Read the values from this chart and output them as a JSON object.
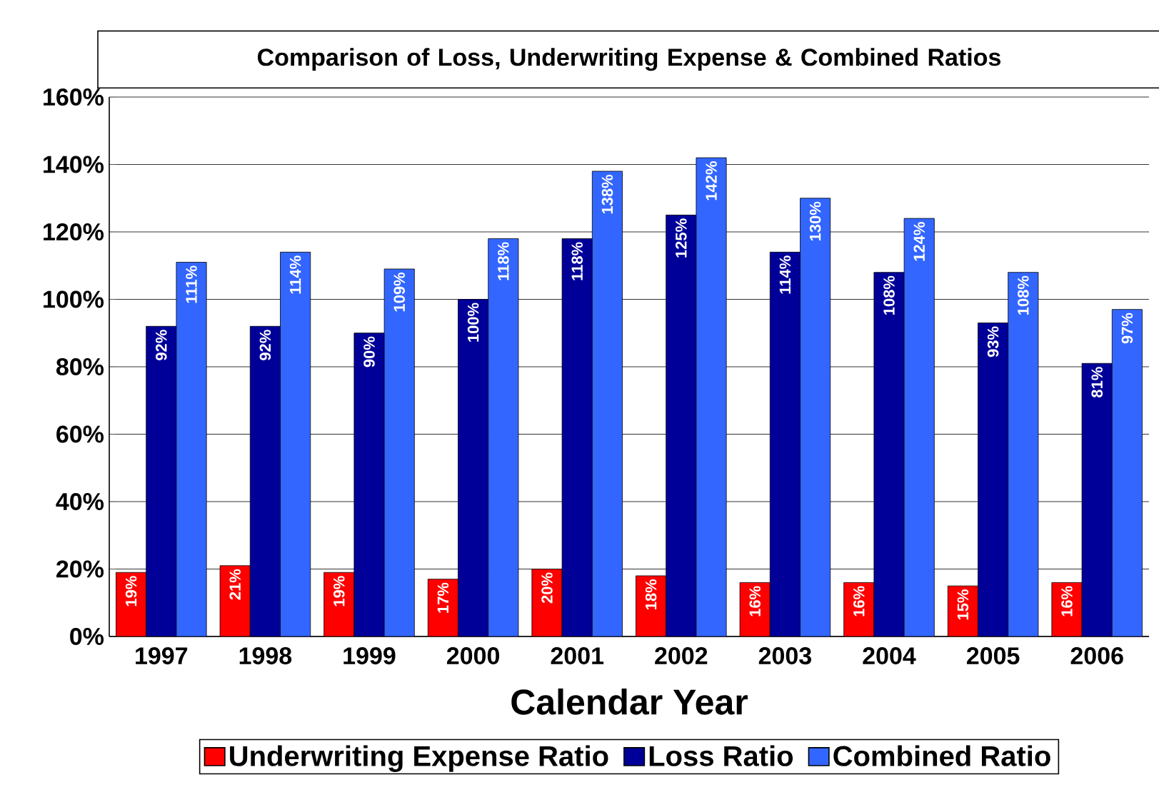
{
  "chart_data": {
    "type": "bar",
    "title": "Comparison of Loss, Underwriting Expense & Combined Ratios",
    "xlabel": "Calendar Year",
    "categories": [
      "1997",
      "1998",
      "1999",
      "2000",
      "2001",
      "2002",
      "2003",
      "2004",
      "2005",
      "2006"
    ],
    "series": [
      {
        "name": "Underwriting Expense Ratio",
        "color": "#ff0000",
        "values": [
          19,
          21,
          19,
          17,
          20,
          18,
          16,
          16,
          15,
          16
        ],
        "value_labels": [
          "19%",
          "21%",
          "19%",
          "17%",
          "20%",
          "18%",
          "16%",
          "16%",
          "15%",
          "16%"
        ]
      },
      {
        "name": "Loss Ratio",
        "color": "#000099",
        "values": [
          92,
          92,
          90,
          100,
          118,
          125,
          114,
          108,
          93,
          81
        ],
        "value_labels": [
          "92%",
          "92%",
          "90%",
          "100%",
          "118%",
          "125%",
          "114%",
          "108%",
          "93%",
          "81%"
        ]
      },
      {
        "name": "Combined Ratio",
        "color": "#3366ff",
        "values": [
          111,
          114,
          109,
          118,
          138,
          142,
          130,
          124,
          108,
          97
        ],
        "value_labels": [
          "111%",
          "114%",
          "109%",
          "118%",
          "138%",
          "142%",
          "130%",
          "124%",
          "108%",
          "97%"
        ]
      }
    ],
    "ylim": [
      0,
      160
    ],
    "yticks": [
      {
        "value": 0,
        "label": "0%"
      },
      {
        "value": 20,
        "label": "20%"
      },
      {
        "value": 40,
        "label": "40%"
      },
      {
        "value": 60,
        "label": "60%"
      },
      {
        "value": 80,
        "label": "80%"
      },
      {
        "value": 100,
        "label": "100%"
      },
      {
        "value": 120,
        "label": "120%"
      },
      {
        "value": 140,
        "label": "140%"
      },
      {
        "value": 160,
        "label": "160%"
      }
    ],
    "grid": "y",
    "legend": "bottom"
  }
}
